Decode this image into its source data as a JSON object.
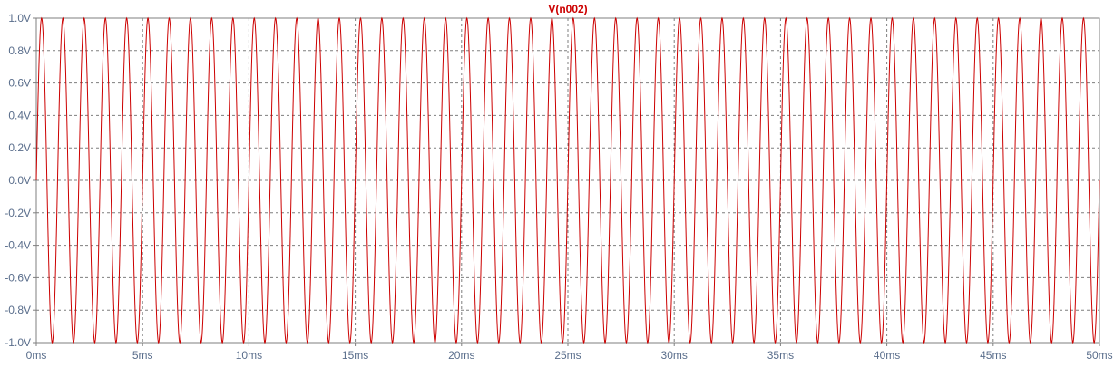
{
  "chart_data": {
    "type": "line",
    "title": "V(n002)",
    "xlabel": "",
    "ylabel": "",
    "xlim": [
      0,
      50
    ],
    "ylim": [
      -1.0,
      1.0
    ],
    "x_ticks": [
      0,
      5,
      10,
      15,
      20,
      25,
      30,
      35,
      40,
      45,
      50
    ],
    "x_tick_labels": [
      "0ms",
      "5ms",
      "10ms",
      "15ms",
      "20ms",
      "25ms",
      "30ms",
      "35ms",
      "40ms",
      "45ms",
      "50ms"
    ],
    "y_ticks": [
      1.0,
      0.8,
      0.6,
      0.4,
      0.2,
      0.0,
      -0.2,
      -0.4,
      -0.6,
      -0.8,
      -1.0
    ],
    "y_tick_labels": [
      "1.0V",
      "0.8V",
      "0.6V",
      "0.4V",
      "0.2V",
      "0.0V",
      "-0.2V",
      "-0.4V",
      "-0.6V",
      "-0.8V",
      "-1.0V"
    ],
    "grid": true,
    "series": [
      {
        "name": "V(n002)",
        "color": "#cc0000",
        "waveform": "sine",
        "amplitude": 1.0,
        "offset": 0.0,
        "frequency_hz": 1000,
        "phase_deg": 0
      }
    ],
    "colors": {
      "background": "#ffffff",
      "axis": "#7f7f7f",
      "grid": "#7f7f7f",
      "tick_label": "#5a6e8c",
      "title": "#cc0000"
    }
  }
}
